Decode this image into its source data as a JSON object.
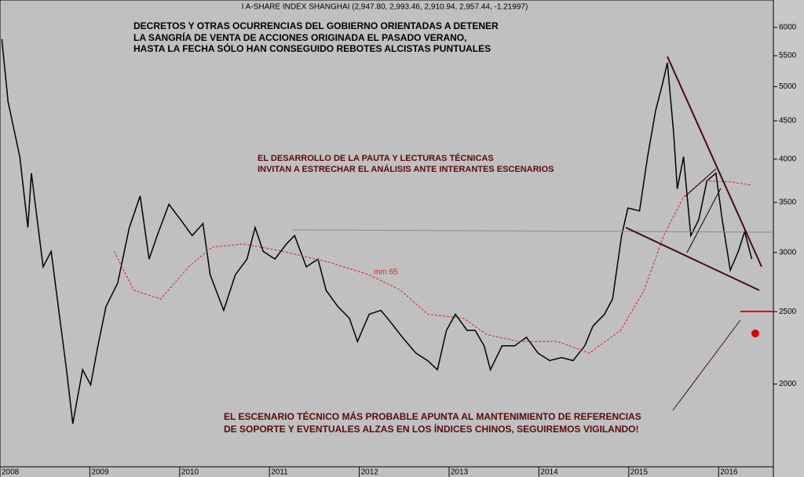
{
  "chart_data": {
    "type": "line",
    "title": "I A-SHARE INDEX SHANGHAI (2,947.80, 2,993.46, 2,910.94, 2,957.44, -1.21997)",
    "annotations": [
      "DECRETOS Y OTRAS OCURRENCIAS DEL GOBIERNO ORIENTADAS A DETENER",
      "LA SANGRÍA DE VENTA DE ACCIONES ORIGINADA EL PASADO VERANO,",
      "HASTA LA FECHA SÓLO HAN CONSEGUIDO REBOTES ALCISTAS PUNTUALES",
      "EL DESARROLLO DE LA PAUTA Y LECTURAS TÉCNICAS",
      "INVITAN A ESTRECHAR EL ANÁLISIS ANTE INTERANTES ESCENARIOS",
      "EL ESCENARIO TÉCNICO MÁS PROBABLE APUNTA AL MANTENIMIENTO DE REFERENCIAS",
      "DE SOPORTE Y EVENTUALES ALZAS EN LOS ÍNDICES CHINOS,  SEGUIREMOS VIGILANDO!"
    ],
    "log_scale": true,
    "xlim": [
      2008,
      2016.61
    ],
    "xticks": [
      2008,
      2009,
      2010,
      2011,
      2012,
      2013,
      2014,
      2015,
      2016
    ],
    "ylim": [
      1550,
      6530
    ],
    "yticks": [
      2000,
      2500,
      3000,
      3500,
      4000,
      4500,
      5000,
      5500,
      6000
    ],
    "series": [
      {
        "color": "#000000",
        "dash": false,
        "x": [
          2008.02,
          2008.09,
          2008.22,
          2008.31,
          2008.35,
          2008.48,
          2008.57,
          2008.66,
          2008.74,
          2008.81,
          2008.92,
          2009.01,
          2009.09,
          2009.18,
          2009.31,
          2009.44,
          2009.56,
          2009.66,
          2009.75,
          2009.88,
          2010.01,
          2010.14,
          2010.26,
          2010.34,
          2010.49,
          2010.62,
          2010.75,
          2010.84,
          2010.93,
          2011.06,
          2011.19,
          2011.28,
          2011.41,
          2011.54,
          2011.63,
          2011.76,
          2011.89,
          2011.98,
          2012.11,
          2012.24,
          2012.35,
          2012.48,
          2012.63,
          2012.76,
          2012.87,
          2012.97,
          2013.07,
          2013.2,
          2013.29,
          2013.39,
          2013.46,
          2013.59,
          2013.73,
          2013.86,
          2013.99,
          2014.12,
          2014.25,
          2014.38,
          2014.51,
          2014.6,
          2014.73,
          2014.82,
          2014.92,
          2014.99,
          2015.12,
          2015.21,
          2015.3,
          2015.37,
          2015.43,
          2015.5,
          2015.54,
          2015.61,
          2015.69,
          2015.78,
          2015.87,
          2015.97,
          2016.04,
          2016.13,
          2016.22,
          2016.29,
          2016.37
        ],
        "values": [
          5790,
          4770,
          4030,
          3240,
          3830,
          2870,
          3010,
          2480,
          2090,
          1770,
          2090,
          1995,
          2250,
          2540,
          2730,
          3240,
          3570,
          2940,
          3160,
          3480,
          3320,
          3160,
          3280,
          2800,
          2510,
          2800,
          2940,
          3240,
          3010,
          2940,
          3080,
          3160,
          2870,
          2940,
          2670,
          2540,
          2450,
          2280,
          2480,
          2510,
          2420,
          2310,
          2200,
          2150,
          2090,
          2360,
          2480,
          2360,
          2360,
          2250,
          2090,
          2250,
          2250,
          2310,
          2200,
          2150,
          2170,
          2150,
          2250,
          2390,
          2480,
          2600,
          3160,
          3440,
          3410,
          4030,
          4650,
          5010,
          5380,
          4330,
          3650,
          4030,
          3160,
          3320,
          3740,
          3830,
          3320,
          2840,
          3010,
          3200,
          2940
        ]
      },
      {
        "name": "mm 65",
        "color": "#e02020",
        "dash": true,
        "x": [
          2009.27,
          2009.49,
          2009.79,
          2010.1,
          2010.36,
          2010.71,
          2011.15,
          2011.67,
          2012.11,
          2012.46,
          2012.76,
          2013.16,
          2013.42,
          2013.77,
          2014.21,
          2014.56,
          2014.91,
          2015.17,
          2015.39,
          2015.61,
          2015.82,
          2016.13,
          2016.37
        ],
        "values": [
          3010,
          2670,
          2600,
          2870,
          3050,
          3080,
          3010,
          2910,
          2800,
          2670,
          2480,
          2450,
          2330,
          2280,
          2280,
          2200,
          2360,
          2670,
          3160,
          3560,
          3740,
          3730,
          3690
        ]
      }
    ]
  }
}
